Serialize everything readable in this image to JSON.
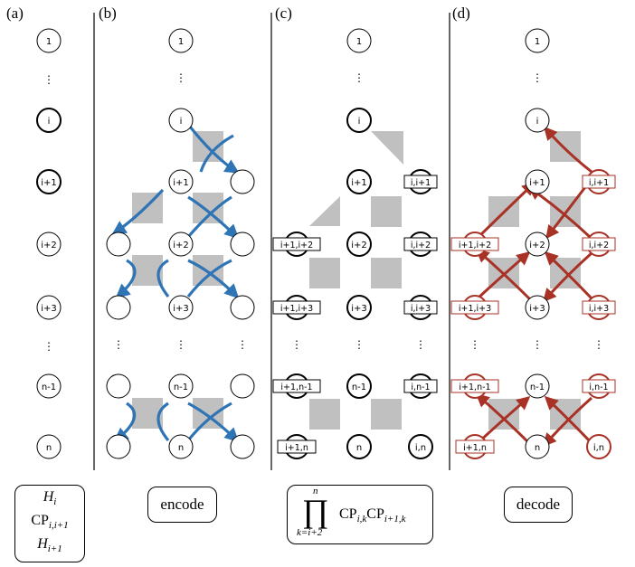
{
  "panels": [
    {
      "label": "(a)"
    },
    {
      "label": "(b)"
    },
    {
      "label": "(c)"
    },
    {
      "label": "(d)"
    }
  ],
  "nodes": {
    "n1": "1",
    "ni": "i",
    "ni1": "i+1",
    "ni2": "i+2",
    "ni3": "i+3",
    "nn1": "n-1",
    "nn": "n",
    "vdots": "⋮"
  },
  "tags_c": {
    "r_i1": "i,i+1",
    "r_i2": "i,i+2",
    "r_i3": "i,i+3",
    "r_n1": "i,n-1",
    "r_n": "i,n",
    "l_i2": "i+1,i+2",
    "l_i3": "i+1,i+3",
    "l_n1": "i+1,n-1",
    "l_n": "i+1,n"
  },
  "captions": {
    "a_line1_base": "H",
    "a_line1_sub": "i",
    "a_line2_base": "CP",
    "a_line2_sub": "i,i+1",
    "a_line3_base": "H",
    "a_line3_sub": "i+1",
    "b": "encode",
    "c_prod": "∏",
    "c_top": "n",
    "c_bottom": "k=i+2",
    "c_t1": "CP",
    "c_t1_sub": "i,k",
    "c_t2": "CP",
    "c_t2_sub": "i+1,k",
    "d": "decode"
  },
  "colors": {
    "encode_arrow": "#2f74b5",
    "decode_arrow": "#a93226",
    "shade": "#c0c0c0"
  }
}
